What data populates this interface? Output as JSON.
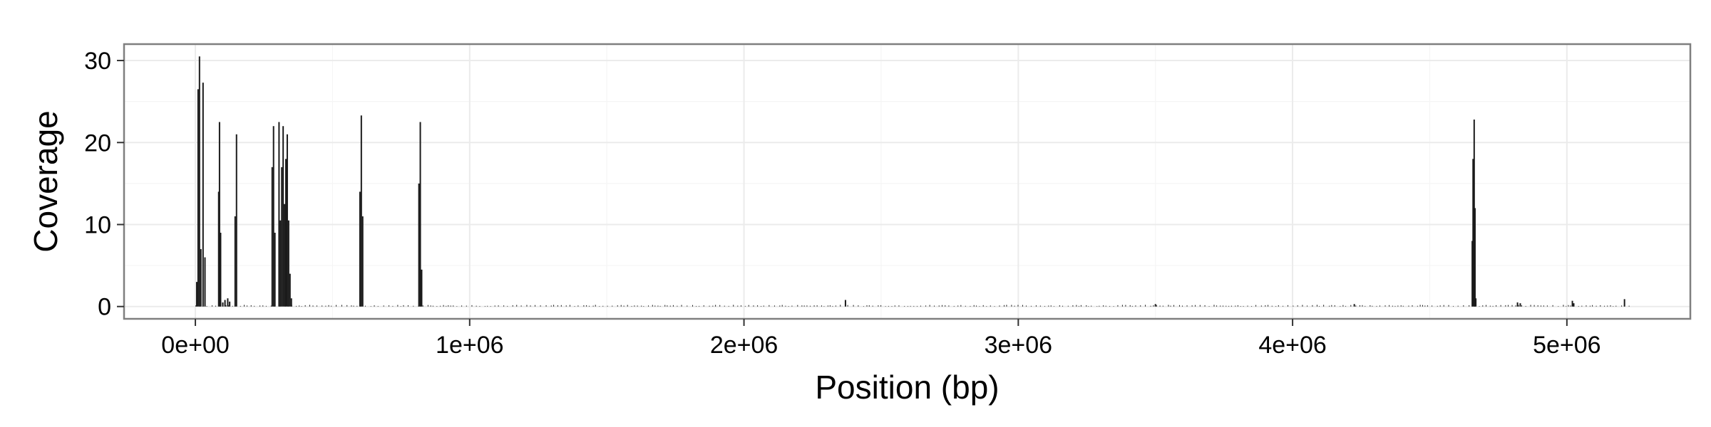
{
  "chart_data": {
    "type": "bar",
    "xlabel": "Position (bp)",
    "ylabel": "Coverage",
    "xlim": [
      -260000,
      5450000
    ],
    "ylim": [
      -1.5,
      32
    ],
    "x_ticks": [
      0,
      1000000,
      2000000,
      3000000,
      4000000,
      5000000
    ],
    "x_tick_labels": [
      "0e+00",
      "1e+06",
      "2e+06",
      "3e+06",
      "4e+06",
      "5e+06"
    ],
    "y_ticks": [
      0,
      10,
      20,
      30
    ],
    "y_tick_labels": [
      "0",
      "10",
      "20",
      "30"
    ],
    "grid": true,
    "legend": "none",
    "series": [
      {
        "x": [
          5000,
          10000,
          15000,
          20000,
          28000,
          35000,
          85000,
          88000,
          92000,
          100000,
          108000,
          118000,
          125000,
          145000,
          150000,
          280000,
          285000,
          290000,
          305000,
          310000,
          315000,
          320000,
          325000,
          330000,
          335000,
          340000,
          345000,
          350000,
          600000,
          605000,
          610000,
          815000,
          820000,
          825000,
          2370000,
          3500000,
          4225000,
          4655000,
          4658000,
          4662000,
          4665000,
          4668000,
          4820000,
          4830000,
          5020000,
          5025000,
          5210000
        ],
        "values": [
          3,
          26.5,
          30.5,
          7,
          27.3,
          6,
          14,
          22.5,
          9,
          0.5,
          0.8,
          1,
          0.6,
          11,
          21,
          17,
          22,
          9,
          22.5,
          10.5,
          17,
          22,
          12.5,
          18,
          21,
          10.5,
          4,
          1,
          14,
          23.3,
          11,
          15,
          22.5,
          4.5,
          0.8,
          0.3,
          0.3,
          8,
          18,
          22.8,
          12,
          1,
          0.5,
          0.4,
          0.7,
          0.4,
          0.9
        ]
      }
    ]
  }
}
